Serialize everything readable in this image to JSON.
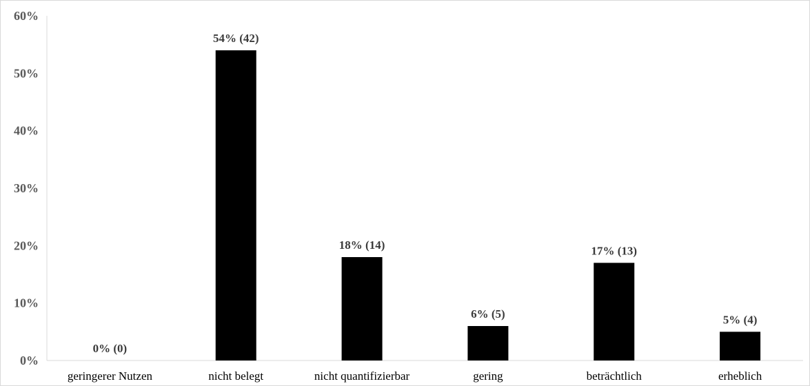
{
  "chart_data": {
    "type": "bar",
    "categories": [
      "geringerer Nutzen",
      "nicht belegt",
      "nicht quantifizierbar",
      "gering",
      "beträchtlich",
      "erheblich"
    ],
    "values": [
      0,
      54,
      18,
      6,
      17,
      5
    ],
    "counts": [
      0,
      42,
      14,
      5,
      13,
      4
    ],
    "data_labels": [
      "0% (0)",
      "54% (42)",
      "18% (14)",
      "6% (5)",
      "17% (13)",
      "5% (4)"
    ],
    "y_ticks": [
      "0%",
      "10%",
      "20%",
      "30%",
      "40%",
      "50%",
      "60%"
    ],
    "ylim": [
      0,
      60
    ],
    "title": "",
    "xlabel": "",
    "ylabel": "",
    "grid": false,
    "bar_color": "#000000"
  }
}
